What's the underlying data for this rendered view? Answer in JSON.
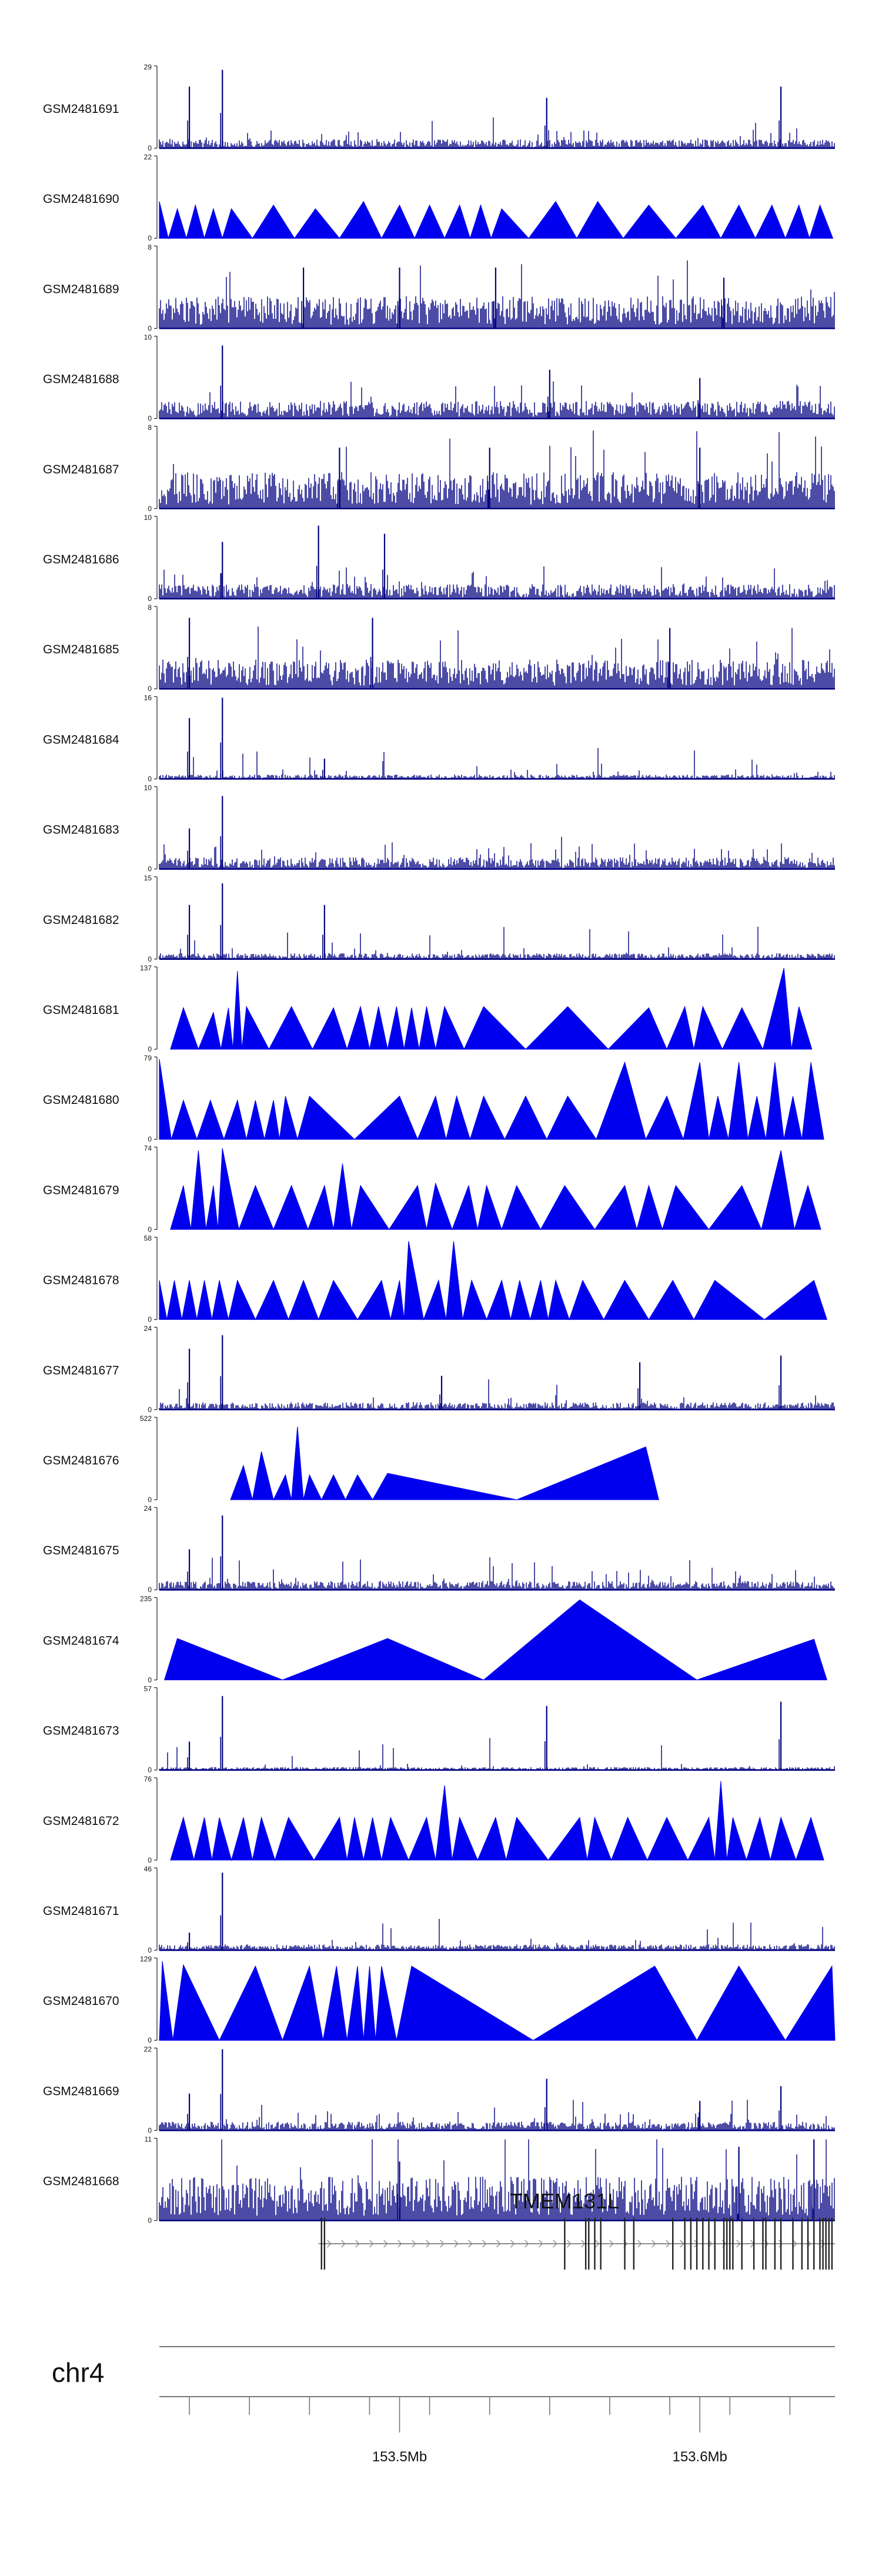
{
  "chart_data": {
    "type": "genome-browser-coverage-tracks",
    "chromosome": "chr4",
    "xlim_mb": [
      153.42,
      153.645
    ],
    "x_ticks": [
      153.5,
      153.6
    ],
    "x_tick_labels": [
      "153.5Mb",
      "153.6Mb"
    ],
    "gene": {
      "name": "TMEM131L",
      "strand": "+",
      "start_mb": 153.473,
      "end_mb": 153.645,
      "exons_mb": [
        153.474,
        153.475,
        153.555,
        153.562,
        153.563,
        153.565,
        153.567,
        153.575,
        153.578,
        153.591,
        153.595,
        153.597,
        153.599,
        153.601,
        153.603,
        153.605,
        153.608,
        153.609,
        153.61,
        153.611,
        153.614,
        153.618,
        153.621,
        153.622,
        153.625,
        153.627,
        153.631,
        153.634,
        153.636,
        153.638,
        153.64,
        153.641,
        153.642,
        153.643,
        153.644
      ]
    },
    "series": [
      {
        "name": "GSM2481691",
        "ymax": 29,
        "style": "dense",
        "baseline": 0.06,
        "peaks_mb": [
          153.43,
          153.441,
          153.549,
          153.627
        ],
        "peak_values": [
          22,
          28,
          18,
          22
        ]
      },
      {
        "name": "GSM2481690",
        "ymax": 22,
        "style": "triangles",
        "peaks_mb": [
          153.42,
          153.426,
          153.432,
          153.438,
          153.444,
          153.458,
          153.472,
          153.488,
          153.5,
          153.51,
          153.52,
          153.527,
          153.534,
          153.552,
          153.566,
          153.583,
          153.601,
          153.613,
          153.624,
          153.633,
          153.64
        ],
        "peak_values": [
          10,
          8,
          9,
          8,
          8,
          9,
          8,
          10,
          9,
          9,
          9,
          9,
          8,
          10,
          10,
          9,
          9,
          9,
          9,
          9,
          9
        ]
      },
      {
        "name": "GSM2481689",
        "ymax": 8,
        "style": "dense",
        "baseline": 0.22,
        "peaks_mb": [
          153.468,
          153.5,
          153.532,
          153.608
        ],
        "peak_values": [
          6,
          6,
          6,
          5
        ]
      },
      {
        "name": "GSM2481688",
        "ymax": 10,
        "style": "dense",
        "baseline": 0.12,
        "peaks_mb": [
          153.441,
          153.55,
          153.6
        ],
        "peak_values": [
          9,
          6,
          5
        ]
      },
      {
        "name": "GSM2481687",
        "ymax": 8,
        "style": "dense",
        "baseline": 0.25,
        "peaks_mb": [
          153.48,
          153.53,
          153.6
        ],
        "peak_values": [
          6,
          6,
          6
        ]
      },
      {
        "name": "GSM2481686",
        "ymax": 10,
        "style": "dense",
        "baseline": 0.1,
        "peaks_mb": [
          153.441,
          153.473,
          153.495
        ],
        "peak_values": [
          7,
          9,
          8
        ]
      },
      {
        "name": "GSM2481685",
        "ymax": 8,
        "style": "dense",
        "baseline": 0.2,
        "peaks_mb": [
          153.43,
          153.491,
          153.59
        ],
        "peak_values": [
          7,
          7,
          6
        ]
      },
      {
        "name": "GSM2481684",
        "ymax": 16,
        "style": "dense",
        "baseline": 0.03,
        "peaks_mb": [
          153.43,
          153.441,
          153.475
        ],
        "peak_values": [
          12,
          16,
          4
        ]
      },
      {
        "name": "GSM2481683",
        "ymax": 10,
        "style": "dense",
        "baseline": 0.08,
        "peaks_mb": [
          153.441,
          153.43
        ],
        "peak_values": [
          9,
          5
        ]
      },
      {
        "name": "GSM2481682",
        "ymax": 15,
        "style": "dense",
        "baseline": 0.04,
        "peaks_mb": [
          153.43,
          153.441,
          153.475
        ],
        "peak_values": [
          10,
          14,
          10
        ]
      },
      {
        "name": "GSM2481681",
        "ymax": 137,
        "style": "triangles",
        "peaks_mb": [
          153.428,
          153.438,
          153.443,
          153.446,
          153.449,
          153.464,
          153.478,
          153.487,
          153.493,
          153.499,
          153.504,
          153.509,
          153.515,
          153.528,
          153.556,
          153.583,
          153.595,
          153.601,
          153.614,
          153.628,
          153.633
        ],
        "peak_values": [
          70,
          62,
          70,
          132,
          72,
          72,
          70,
          72,
          72,
          72,
          70,
          72,
          72,
          72,
          72,
          70,
          72,
          72,
          70,
          137,
          72
        ]
      },
      {
        "name": "GSM2481680",
        "ymax": 79,
        "style": "triangles",
        "peaks_mb": [
          153.42,
          153.428,
          153.437,
          153.446,
          153.452,
          153.458,
          153.462,
          153.47,
          153.5,
          153.512,
          153.519,
          153.528,
          153.542,
          153.556,
          153.575,
          153.589,
          153.6,
          153.606,
          153.613,
          153.619,
          153.625,
          153.631,
          153.637
        ],
        "peak_values": [
          78,
          38,
          38,
          38,
          38,
          38,
          42,
          42,
          42,
          42,
          42,
          42,
          42,
          42,
          75,
          42,
          75,
          42,
          75,
          42,
          75,
          42,
          75
        ]
      },
      {
        "name": "GSM2481679",
        "ymax": 74,
        "style": "triangles",
        "peaks_mb": [
          153.428,
          153.433,
          153.438,
          153.441,
          153.452,
          153.464,
          153.475,
          153.481,
          153.487,
          153.506,
          153.512,
          153.523,
          153.529,
          153.539,
          153.555,
          153.575,
          153.583,
          153.592,
          153.614,
          153.627,
          153.636
        ],
        "peak_values": [
          40,
          72,
          40,
          74,
          40,
          40,
          40,
          60,
          40,
          40,
          42,
          40,
          40,
          40,
          40,
          40,
          40,
          40,
          40,
          72,
          40
        ]
      },
      {
        "name": "GSM2481678",
        "ymax": 58,
        "style": "triangles",
        "peaks_mb": [
          153.42,
          153.425,
          153.43,
          153.435,
          153.44,
          153.446,
          153.458,
          153.468,
          153.478,
          153.494,
          153.5,
          153.503,
          153.513,
          153.518,
          153.524,
          153.534,
          153.54,
          153.547,
          153.552,
          153.561,
          153.575,
          153.591,
          153.605,
          153.638
        ],
        "peak_values": [
          28,
          28,
          28,
          28,
          28,
          28,
          28,
          28,
          28,
          28,
          28,
          56,
          28,
          56,
          28,
          28,
          28,
          28,
          28,
          28,
          28,
          28,
          28,
          28
        ]
      },
      {
        "name": "GSM2481677",
        "ymax": 24,
        "style": "dense",
        "baseline": 0.05,
        "peaks_mb": [
          153.43,
          153.441,
          153.514,
          153.58,
          153.627
        ],
        "peak_values": [
          18,
          22,
          10,
          14,
          16
        ]
      },
      {
        "name": "GSM2481676",
        "ymax": 522,
        "style": "triangles",
        "peaks_mb": [
          153.448,
          153.454,
          153.462,
          153.466,
          153.47,
          153.478,
          153.486,
          153.496,
          153.582
        ],
        "peak_values": [
          220,
          310,
          160,
          470,
          160,
          160,
          160,
          170,
          340
        ]
      },
      {
        "name": "GSM2481675",
        "ymax": 24,
        "style": "dense",
        "baseline": 0.06,
        "peaks_mb": [
          153.43,
          153.441
        ],
        "peak_values": [
          12,
          22
        ]
      },
      {
        "name": "GSM2481674",
        "ymax": 235,
        "style": "triangles",
        "peaks_mb": [
          153.426,
          153.496,
          153.56,
          153.638
        ],
        "peak_values": [
          120,
          120,
          232,
          118
        ]
      },
      {
        "name": "GSM2481673",
        "ymax": 57,
        "style": "dense",
        "baseline": 0.02,
        "peaks_mb": [
          153.43,
          153.441,
          153.549,
          153.627
        ],
        "peak_values": [
          20,
          52,
          45,
          48
        ]
      },
      {
        "name": "GSM2481672",
        "ymax": 76,
        "style": "triangles",
        "peaks_mb": [
          153.428,
          153.435,
          153.44,
          153.448,
          153.454,
          153.463,
          153.48,
          153.485,
          153.491,
          153.497,
          153.509,
          153.515,
          153.52,
          153.532,
          153.539,
          153.56,
          153.565,
          153.576,
          153.589,
          153.603,
          153.607,
          153.611,
          153.62,
          153.627,
          153.637
        ],
        "peak_values": [
          40,
          40,
          40,
          40,
          40,
          40,
          40,
          40,
          40,
          40,
          40,
          70,
          40,
          40,
          40,
          40,
          40,
          40,
          40,
          40,
          74,
          40,
          40,
          40,
          40
        ]
      },
      {
        "name": "GSM2481671",
        "ymax": 46,
        "style": "dense",
        "baseline": 0.04,
        "peaks_mb": [
          153.441,
          153.43
        ],
        "peak_values": [
          44,
          10
        ]
      },
      {
        "name": "GSM2481670",
        "ymax": 129,
        "style": "triangles",
        "peaks_mb": [
          153.421,
          153.428,
          153.452,
          153.47,
          153.479,
          153.486,
          153.49,
          153.494,
          153.504,
          153.585,
          153.613,
          153.644
        ],
        "peak_values": [
          126,
          120,
          118,
          118,
          118,
          118,
          118,
          118,
          118,
          118,
          118,
          118
        ]
      },
      {
        "name": "GSM2481669",
        "ymax": 22,
        "style": "dense",
        "baseline": 0.06,
        "peaks_mb": [
          153.441,
          153.43,
          153.549,
          153.6,
          153.627
        ],
        "peak_values": [
          22,
          10,
          14,
          8,
          12
        ]
      },
      {
        "name": "GSM2481668",
        "ymax": 11,
        "style": "dense",
        "baseline": 0.3,
        "peaks_mb": [
          153.5,
          153.613,
          153.638
        ],
        "peak_values": [
          8,
          10,
          11
        ]
      }
    ]
  }
}
